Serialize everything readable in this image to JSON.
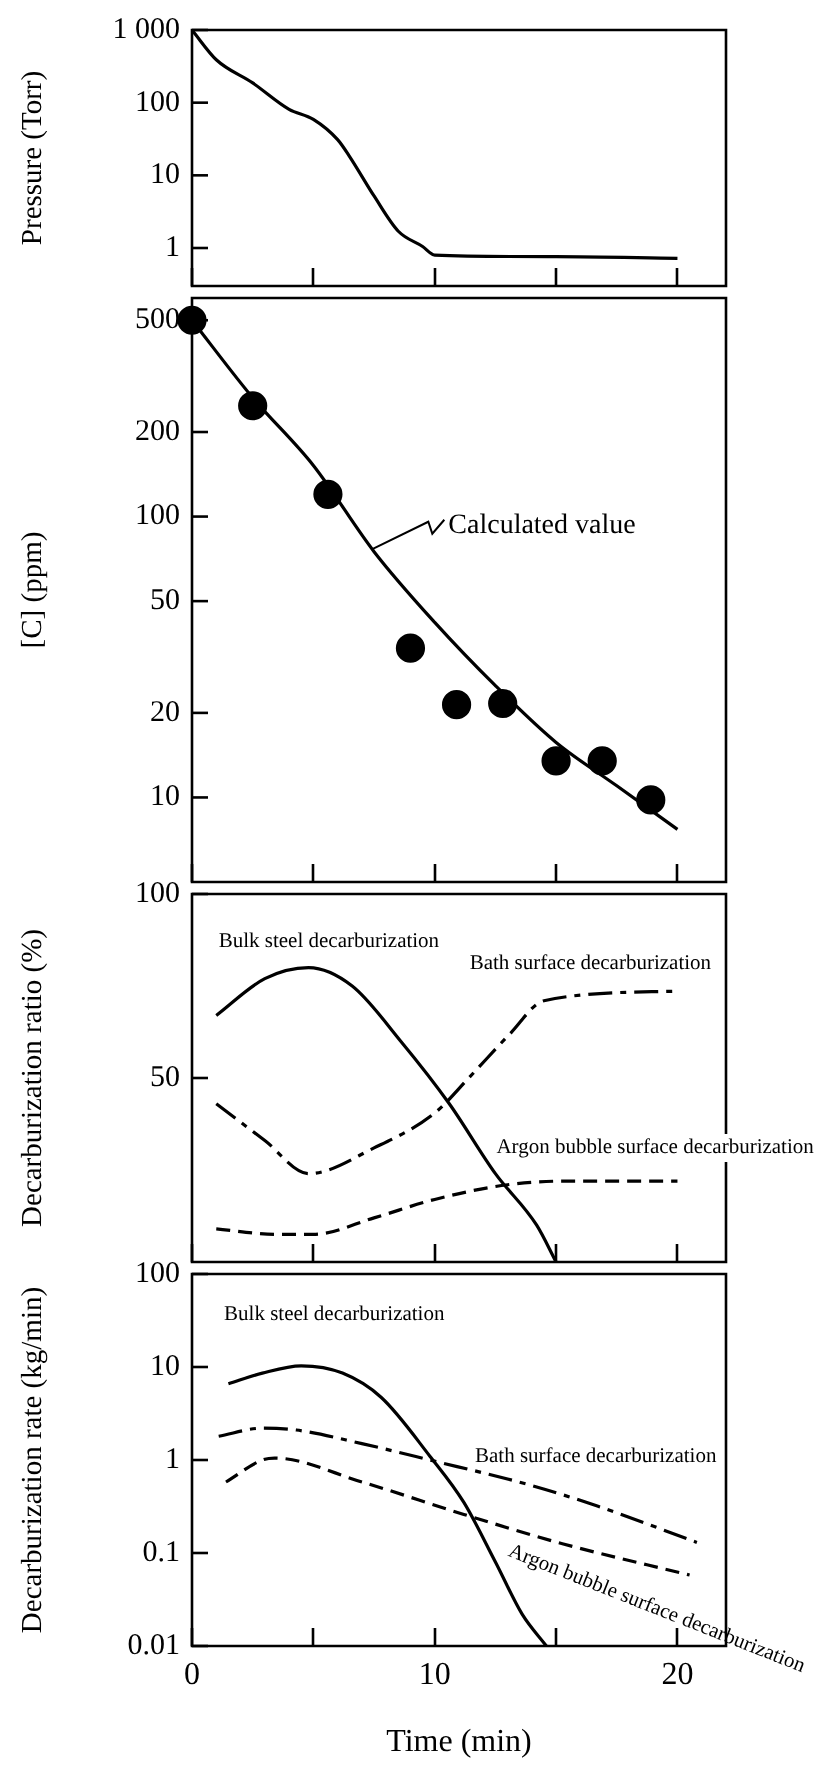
{
  "chart_data": [
    {
      "type": "line",
      "ylabel": "Pressure (Torr)",
      "x": [
        0,
        1,
        2.5,
        4,
        5,
        6,
        6.5,
        7.5,
        8.5,
        9.5,
        10,
        15,
        20
      ],
      "values": [
        1000,
        390,
        187,
        81,
        59,
        31,
        18,
        5.2,
        1.7,
        1.05,
        0.8,
        0.76,
        0.72
      ],
      "color": "#000000",
      "log": "y",
      "xlim": [
        0,
        22
      ],
      "xticks": [
        0,
        5,
        10,
        15,
        20
      ],
      "ylim": [
        0.3,
        1000
      ],
      "yticks": [
        1,
        10,
        100,
        {
          "value": 1000,
          "label": "1 000"
        }
      ],
      "tick_labels": "y"
    },
    {
      "type": "line",
      "ylabel": "[C] (ppm)",
      "log": "y",
      "xlim": [
        0,
        22
      ],
      "xticks": [
        0,
        5,
        10,
        15,
        20
      ],
      "ylim": [
        5,
        600
      ],
      "yticks": [
        10,
        20,
        50,
        100,
        200,
        500
      ],
      "tick_labels": "y",
      "series": [
        {
          "type": "scatter",
          "color": "#000000",
          "marker": "circle",
          "x": [
            0,
            2.5,
            5.6,
            9,
            10.9,
            12.8,
            15,
            16.9,
            18.9
          ],
          "values": [
            500,
            248,
            120,
            34,
            21.4,
            21.6,
            13.5,
            13.5,
            9.8
          ]
        },
        {
          "type": "line",
          "name": "Calculated value",
          "color": "#000000",
          "line_style": "solid",
          "x": [
            0,
            2.5,
            5,
            7.5,
            10,
            12.5,
            15,
            17.5,
            20
          ],
          "values": [
            500,
            265,
            152,
            75,
            42,
            25,
            15.7,
            11,
            7.7
          ]
        }
      ]
    },
    {
      "type": "line",
      "ylabel": "Decarburization ratio (%)",
      "xlim": [
        0,
        22
      ],
      "xticks": [
        0,
        5,
        10,
        15,
        20
      ],
      "ylim": [
        0,
        100
      ],
      "yticks": [
        50,
        100
      ],
      "tick_labels": "y",
      "series": [
        {
          "name": "Bulk steel decarburization",
          "color": "#000000",
          "line_style": "solid",
          "x": [
            1,
            3,
            4.8,
            6.6,
            8.6,
            10.6,
            12.5,
            14.2,
            15
          ],
          "values": [
            67,
            77,
            80,
            75,
            60,
            43,
            24,
            10,
            0
          ]
        },
        {
          "name": "Bath surface decarburization",
          "color": "#000000",
          "line_style": "dashdot",
          "x": [
            1,
            3,
            4.8,
            7.5,
            10,
            11.4,
            13.1,
            14.5,
            20
          ],
          "values": [
            43,
            33,
            24,
            31,
            40.5,
            50,
            62,
            71,
            73.6
          ]
        },
        {
          "name": "Argon bubble surface decarburization",
          "color": "#000000",
          "line_style": "dashed",
          "x": [
            1,
            3.5,
            5,
            7.5,
            10,
            13,
            15.5,
            20
          ],
          "values": [
            9,
            7.5,
            7.5,
            12,
            17,
            21,
            22,
            22
          ]
        }
      ]
    },
    {
      "type": "line",
      "xlabel": "Time (min)",
      "ylabel": "Decarburization rate (kg/min)",
      "log": "y",
      "xlim": [
        0,
        22
      ],
      "xticks": [
        0,
        {
          "value": 5,
          "label": null
        },
        10,
        {
          "value": 15,
          "label": null
        },
        20
      ],
      "ylim": [
        0.01,
        100
      ],
      "yticks": [
        0.01,
        0.1,
        1,
        10,
        100
      ],
      "series": [
        {
          "name": "Bulk steel decarburization",
          "color": "#000000",
          "line_style": "solid",
          "x": [
            1.5,
            2.9,
            4.5,
            6.2,
            7.8,
            9.8,
            11.2,
            12.5,
            13.6,
            14.6
          ],
          "values": [
            6.6,
            8.6,
            10.3,
            8.6,
            4.7,
            1.1,
            0.35,
            0.08,
            0.022,
            0.01
          ]
        },
        {
          "name": "Bath surface decarburization",
          "color": "#000000",
          "line_style": "dashdot",
          "x": [
            1.1,
            2.9,
            4.3,
            7,
            9.8,
            13.9,
            16.7,
            20.8
          ],
          "values": [
            1.8,
            2.2,
            2.1,
            1.5,
            1.0,
            0.54,
            0.32,
            0.13
          ]
        },
        {
          "name": "Argon bubble surface decarburization",
          "color": "#000000",
          "line_style": "dashed",
          "x": [
            1.4,
            2.9,
            3.4,
            7,
            11.2,
            15.3,
            20.5
          ],
          "values": [
            0.58,
            1.0,
            1.05,
            0.58,
            0.26,
            0.125,
            0.058
          ]
        }
      ]
    }
  ]
}
